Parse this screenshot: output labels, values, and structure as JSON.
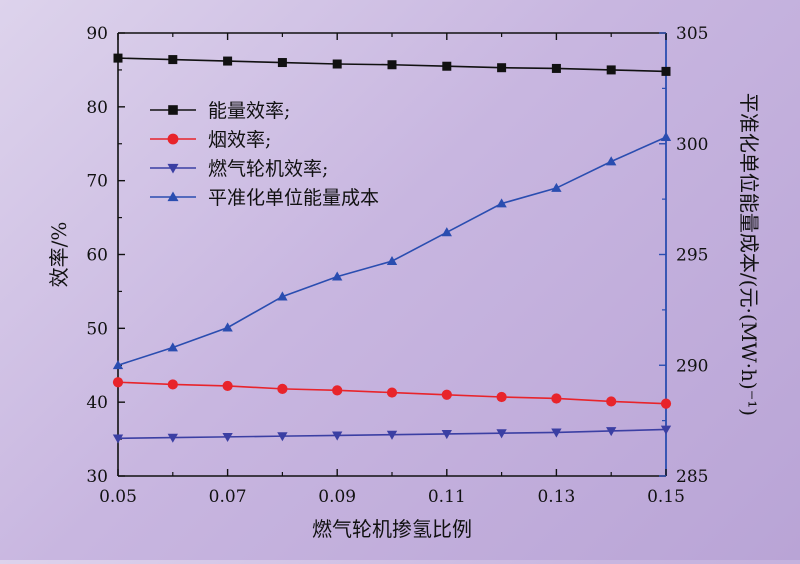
{
  "chart_data": {
    "type": "line",
    "x": [
      0.05,
      0.06,
      0.07,
      0.08,
      0.09,
      0.1,
      0.11,
      0.12,
      0.13,
      0.14,
      0.15
    ],
    "xlim": [
      0.05,
      0.15
    ],
    "xticks": [
      "0.05",
      "0.07",
      "0.09",
      "0.11",
      "0.13",
      "0.15"
    ],
    "xlabel": "燃气轮机掺氢比例",
    "y_left": {
      "label": "效率/%",
      "lim": [
        30,
        90
      ],
      "ticks": [
        "30",
        "40",
        "50",
        "60",
        "70",
        "80",
        "90"
      ]
    },
    "y_right": {
      "label": "平准化单位能量成本/(元·(MW·h)⁻¹)",
      "lim": [
        285,
        305
      ],
      "ticks": [
        "285",
        "290",
        "295",
        "300",
        "305"
      ]
    },
    "series": [
      {
        "name": "能量效率;",
        "axis": "left",
        "marker": "square",
        "color": "#111111",
        "values": [
          86.6,
          86.4,
          86.2,
          86.0,
          85.8,
          85.7,
          85.5,
          85.3,
          85.2,
          85.0,
          84.8
        ]
      },
      {
        "name": "烟效率;",
        "axis": "left",
        "marker": "circle",
        "color": "#e8242b",
        "values": [
          42.7,
          42.4,
          42.2,
          41.8,
          41.6,
          41.3,
          41.0,
          40.7,
          40.5,
          40.1,
          39.8
        ]
      },
      {
        "name": "燃气轮机效率;",
        "axis": "left",
        "marker": "triangle-down",
        "color": "#3b3fa3",
        "values": [
          35.1,
          35.2,
          35.3,
          35.4,
          35.5,
          35.6,
          35.7,
          35.8,
          35.9,
          36.1,
          36.3
        ]
      },
      {
        "name": "平准化单位能量成本",
        "axis": "right",
        "marker": "triangle-up",
        "color": "#2a4db0",
        "values": [
          290.0,
          290.8,
          291.7,
          293.1,
          294.0,
          294.7,
          296.0,
          297.3,
          298.0,
          299.2,
          300.3
        ]
      }
    ],
    "legend_position": "top-left",
    "grid": false
  }
}
